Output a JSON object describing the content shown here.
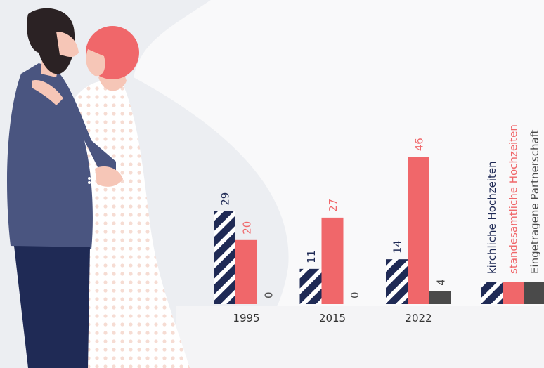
{
  "chart_data": {
    "type": "bar",
    "categories": [
      "1995",
      "2015",
      "2022"
    ],
    "series": [
      {
        "name": "kirchliche Hochzeiten",
        "color": "#1f2a55",
        "values": [
          29,
          11,
          14
        ]
      },
      {
        "name": "standesamtliche Hochzeiten",
        "color": "#f0676a",
        "values": [
          20,
          27,
          46
        ]
      },
      {
        "name": "Eingetragene Partnerschaft",
        "color": "#4a4a4a",
        "values": [
          0,
          0,
          4
        ]
      }
    ]
  }
}
